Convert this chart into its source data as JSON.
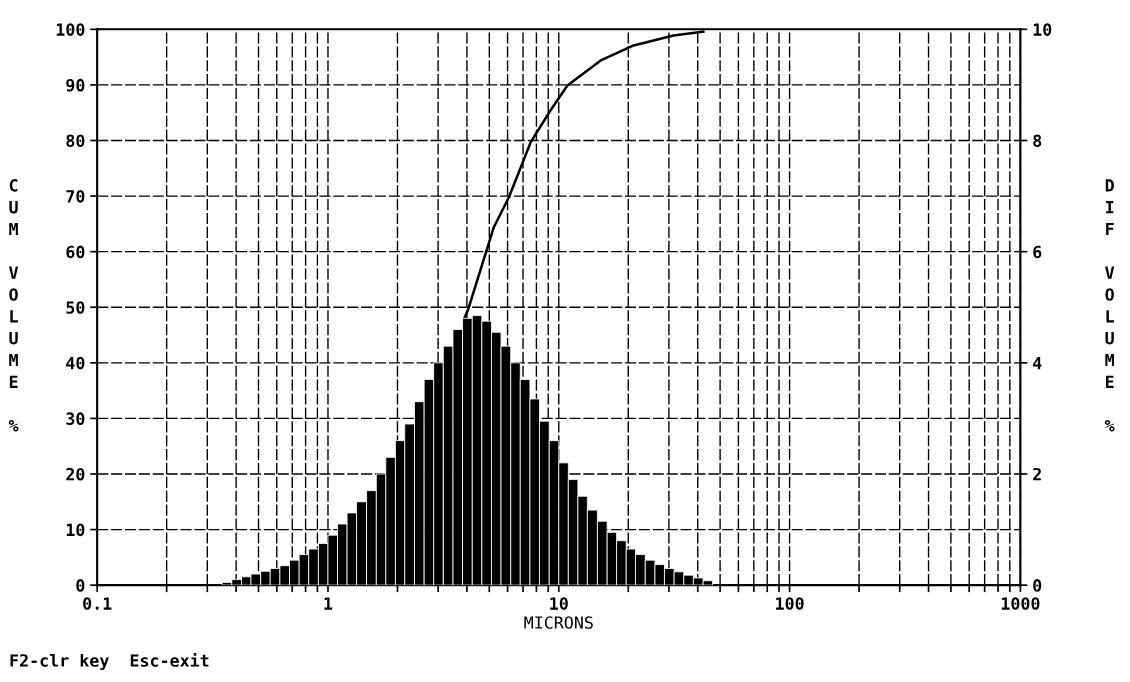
{
  "chart_data": {
    "type": "histogram",
    "xlabel": "MICRONS",
    "ylabel": "CUM VOLUME %",
    "y2label": "DIF VOLUME %",
    "log": "x",
    "grid": true,
    "xlim": [
      0.1,
      1000
    ],
    "xticks": [
      {
        "value": 0.1,
        "label": "0.1"
      },
      {
        "value": 0.2,
        "label": null
      },
      {
        "value": 0.3,
        "label": null
      },
      {
        "value": 0.4,
        "label": null
      },
      {
        "value": 0.5,
        "label": null
      },
      {
        "value": 0.6,
        "label": null
      },
      {
        "value": 0.7,
        "label": null
      },
      {
        "value": 0.8,
        "label": null
      },
      {
        "value": 0.9,
        "label": null
      },
      {
        "value": 1,
        "label": "1"
      },
      {
        "value": 2,
        "label": null
      },
      {
        "value": 3,
        "label": null
      },
      {
        "value": 4,
        "label": null
      },
      {
        "value": 5,
        "label": null
      },
      {
        "value": 6,
        "label": null
      },
      {
        "value": 7,
        "label": null
      },
      {
        "value": 8,
        "label": null
      },
      {
        "value": 9,
        "label": null
      },
      {
        "value": 10,
        "label": "10"
      },
      {
        "value": 20,
        "label": null
      },
      {
        "value": 30,
        "label": null
      },
      {
        "value": 40,
        "label": null
      },
      {
        "value": 50,
        "label": null
      },
      {
        "value": 60,
        "label": null
      },
      {
        "value": 70,
        "label": null
      },
      {
        "value": 80,
        "label": null
      },
      {
        "value": 90,
        "label": null
      },
      {
        "value": 100,
        "label": "100"
      },
      {
        "value": 200,
        "label": null
      },
      {
        "value": 300,
        "label": null
      },
      {
        "value": 400,
        "label": null
      },
      {
        "value": 500,
        "label": null
      },
      {
        "value": 600,
        "label": null
      },
      {
        "value": 700,
        "label": null
      },
      {
        "value": 800,
        "label": null
      },
      {
        "value": 900,
        "label": null
      },
      {
        "value": 1000,
        "label": "1000"
      }
    ],
    "ylim": [
      0,
      100
    ],
    "yticks": [
      0,
      10,
      20,
      30,
      40,
      50,
      60,
      70,
      80,
      90,
      100
    ],
    "y2lim": [
      0,
      10
    ],
    "y2ticks": [
      0,
      2,
      4,
      6,
      8,
      10
    ],
    "series": [
      {
        "type": "histogram",
        "axis": "y2",
        "color": "#000000",
        "bins": [
          0.348,
          0.383,
          0.422,
          0.464,
          0.511,
          0.562,
          0.619,
          0.681,
          0.75,
          0.825,
          0.909,
          1,
          1.1,
          1.21,
          1.33,
          1.47,
          1.62,
          1.78,
          1.96,
          2.15,
          2.37,
          2.61,
          2.87,
          3.16,
          3.48,
          3.83,
          4.22,
          4.64,
          5.11,
          5.62,
          6.19,
          6.81,
          7.5,
          8.25,
          9.09,
          10,
          11.0,
          12.1,
          13.3,
          14.7,
          16.2,
          17.8,
          19.6,
          21.5,
          23.7,
          26.1,
          28.7,
          31.6,
          34.8,
          38.3,
          42.2,
          46.4
        ],
        "values": [
          0.05,
          0.1,
          0.15,
          0.2,
          0.25,
          0.3,
          0.35,
          0.45,
          0.55,
          0.65,
          0.75,
          0.9,
          1.1,
          1.3,
          1.5,
          1.7,
          2.0,
          2.3,
          2.6,
          2.9,
          3.3,
          3.7,
          4.0,
          4.3,
          4.6,
          4.8,
          4.85,
          4.75,
          4.55,
          4.3,
          4.0,
          3.7,
          3.35,
          2.95,
          2.6,
          2.2,
          1.9,
          1.6,
          1.35,
          1.15,
          0.95,
          0.8,
          0.65,
          0.55,
          0.45,
          0.37,
          0.3,
          0.24,
          0.18,
          0.13,
          0.08
        ]
      },
      {
        "type": "line",
        "axis": "y",
        "color": "#000000",
        "x": [
          3.9,
          4.04,
          5.23,
          6.08,
          7.56,
          9.2,
          10.9,
          15.2,
          21.1,
          31.4,
          42.3
        ],
        "values": [
          48,
          49.5,
          64.4,
          69.8,
          79.7,
          85.4,
          89.9,
          94.4,
          97.1,
          98.9,
          99.6
        ]
      }
    ],
    "annotations": [
      "F2-clr key  Esc-exit"
    ]
  }
}
